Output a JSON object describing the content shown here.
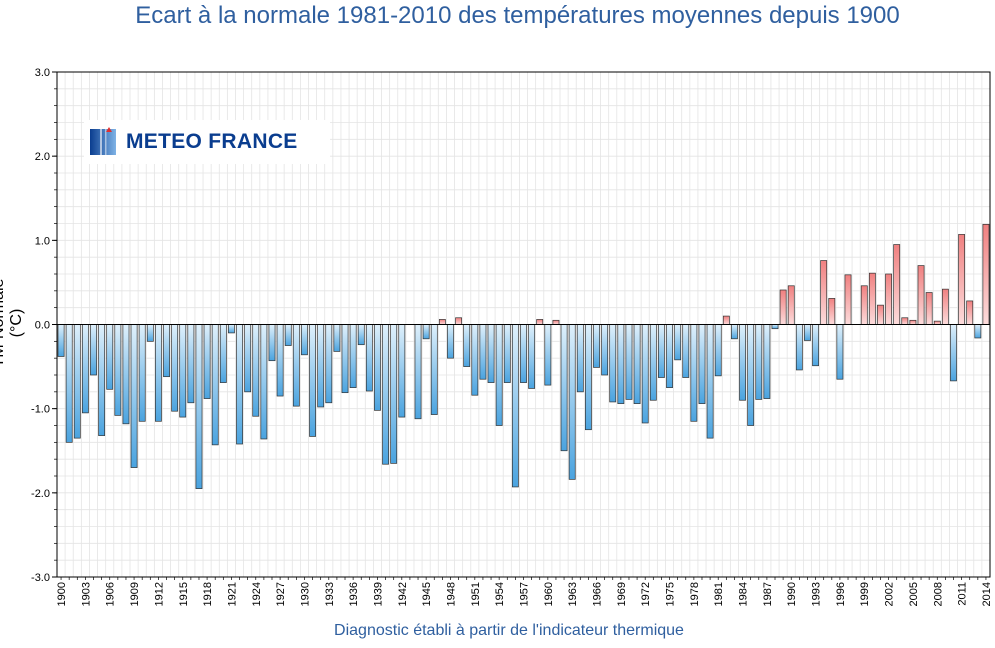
{
  "chart_data": {
    "type": "bar",
    "title": "Ecart à la normale 1981-2010 des températures moyennes depuis 1900",
    "xlabel": "Diagnostic établi à partir de l'indicateur thermique",
    "ylabel": "TM-Normale (°C)",
    "ylim": [
      -3.0,
      3.0
    ],
    "yticks": [
      "-3.0",
      "-2.0",
      "-1.0",
      "0.0",
      "1.0",
      "2.0",
      "3.0"
    ],
    "grid": true,
    "logo_text": "METEO FRANCE",
    "positive_color": "#f08080",
    "negative_color": "#4aa3df",
    "years": [
      1900,
      1901,
      1902,
      1903,
      1904,
      1905,
      1906,
      1907,
      1908,
      1909,
      1910,
      1911,
      1912,
      1913,
      1914,
      1915,
      1916,
      1917,
      1918,
      1919,
      1920,
      1921,
      1922,
      1923,
      1924,
      1925,
      1926,
      1927,
      1928,
      1929,
      1930,
      1931,
      1932,
      1933,
      1934,
      1935,
      1936,
      1937,
      1938,
      1939,
      1940,
      1941,
      1942,
      1943,
      1944,
      1945,
      1946,
      1947,
      1948,
      1949,
      1950,
      1951,
      1952,
      1953,
      1954,
      1955,
      1956,
      1957,
      1958,
      1959,
      1960,
      1961,
      1962,
      1963,
      1964,
      1965,
      1966,
      1967,
      1968,
      1969,
      1970,
      1971,
      1972,
      1973,
      1974,
      1975,
      1976,
      1977,
      1978,
      1979,
      1980,
      1981,
      1982,
      1983,
      1984,
      1985,
      1986,
      1987,
      1988,
      1989,
      1990,
      1991,
      1992,
      1993,
      1994,
      1995,
      1996,
      1997,
      1998,
      1999,
      2000,
      2001,
      2002,
      2003,
      2004,
      2005,
      2006,
      2007,
      2008,
      2009,
      2010,
      2011,
      2012,
      2013,
      2014
    ],
    "values": [
      -0.38,
      -1.4,
      -1.35,
      -1.05,
      -0.6,
      -1.32,
      -0.77,
      -1.08,
      -1.18,
      -1.7,
      -1.15,
      -0.2,
      -1.15,
      -0.62,
      -1.03,
      -1.1,
      -0.93,
      -1.95,
      -0.88,
      -1.43,
      -0.69,
      -0.1,
      -1.42,
      -0.8,
      -1.09,
      -1.36,
      -0.43,
      -0.85,
      -0.25,
      -0.97,
      -0.36,
      -1.33,
      -0.98,
      -0.93,
      -0.32,
      -0.81,
      -0.75,
      -0.24,
      -0.79,
      -1.02,
      -1.66,
      -1.65,
      -1.1,
      0.0,
      -1.12,
      -0.17,
      -1.07,
      0.06,
      -0.4,
      0.08,
      -0.5,
      -0.84,
      -0.65,
      -0.69,
      -1.2,
      -0.69,
      -1.93,
      -0.69,
      -0.76,
      0.06,
      -0.72,
      0.05,
      -1.5,
      -1.84,
      -0.8,
      -1.25,
      -0.51,
      -0.6,
      -0.92,
      -0.94,
      -0.89,
      -0.94,
      -1.17,
      -0.9,
      -0.63,
      -0.75,
      -0.42,
      -0.63,
      -1.15,
      -0.94,
      -1.35,
      -0.61,
      0.1,
      -0.17,
      -0.9,
      -1.2,
      -0.89,
      -0.88,
      -0.05,
      0.41,
      0.46,
      -0.54,
      -0.19,
      -0.49,
      0.76,
      0.31,
      -0.65,
      0.59,
      0.0,
      0.46,
      0.61,
      0.23,
      0.6,
      0.95,
      0.08,
      0.05,
      0.7,
      0.38,
      0.04,
      0.42,
      -0.67,
      1.07,
      0.28,
      -0.16,
      1.19
    ]
  }
}
